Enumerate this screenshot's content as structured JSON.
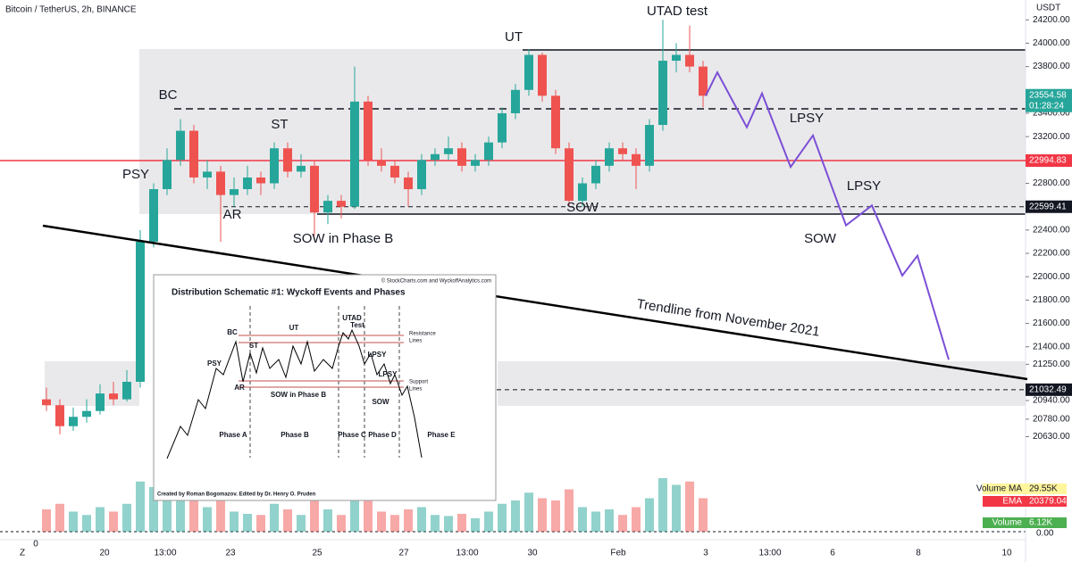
{
  "header": {
    "symbol": "Bitcoin / TetherUS, 2h, BINANCE",
    "currency": "USDT",
    "left_zero": "0",
    "right_zero": "0.00",
    "corner": "Z"
  },
  "chart_data": {
    "type": "candlestick",
    "up_color": "#26a69a",
    "down_color": "#ef5350",
    "candles": [
      [
        20950,
        21050,
        20850,
        20900
      ],
      [
        20900,
        20950,
        20650,
        20720
      ],
      [
        20720,
        20880,
        20680,
        20800
      ],
      [
        20800,
        20950,
        20750,
        20850
      ],
      [
        20850,
        21080,
        20820,
        21000
      ],
      [
        21000,
        21100,
        20900,
        20950
      ],
      [
        20950,
        21200,
        20930,
        21100
      ],
      [
        21100,
        22400,
        21050,
        22300
      ],
      [
        22300,
        22800,
        22250,
        22750
      ],
      [
        22750,
        23100,
        22700,
        23000
      ],
      [
        23000,
        23350,
        22950,
        23250
      ],
      [
        23250,
        23300,
        22800,
        22850
      ],
      [
        22850,
        23000,
        22750,
        22900
      ],
      [
        22900,
        22950,
        22300,
        22700
      ],
      [
        22700,
        22850,
        22600,
        22750
      ],
      [
        22750,
        22950,
        22700,
        22850
      ],
      [
        22850,
        22900,
        22700,
        22800
      ],
      [
        22800,
        23150,
        22750,
        23100
      ],
      [
        23100,
        23150,
        22850,
        22900
      ],
      [
        22900,
        23050,
        22850,
        22950
      ],
      [
        22950,
        23000,
        22350,
        22550
      ],
      [
        22550,
        22700,
        22450,
        22650
      ],
      [
        22650,
        22700,
        22500,
        22600
      ],
      [
        22600,
        23800,
        22580,
        23500
      ],
      [
        23500,
        23550,
        22950,
        23000
      ],
      [
        23000,
        23100,
        22900,
        22950
      ],
      [
        22950,
        23000,
        22800,
        22850
      ],
      [
        22850,
        22900,
        22600,
        22750
      ],
      [
        22750,
        23050,
        22700,
        23000
      ],
      [
        23000,
        23100,
        22950,
        23050
      ],
      [
        23050,
        23200,
        23000,
        23100
      ],
      [
        23100,
        23150,
        22900,
        22950
      ],
      [
        22950,
        23050,
        22900,
        23000
      ],
      [
        23000,
        23200,
        22950,
        23150
      ],
      [
        23150,
        23450,
        23100,
        23400
      ],
      [
        23400,
        23650,
        23350,
        23600
      ],
      [
        23600,
        23950,
        23550,
        23900
      ],
      [
        23900,
        23920,
        23500,
        23550
      ],
      [
        23550,
        23600,
        23050,
        23100
      ],
      [
        23100,
        23150,
        22600,
        22650
      ],
      [
        22650,
        22850,
        22600,
        22800
      ],
      [
        22800,
        23000,
        22750,
        22950
      ],
      [
        22950,
        23150,
        22900,
        23100
      ],
      [
        23100,
        23150,
        23000,
        23050
      ],
      [
        23050,
        23100,
        22750,
        22950
      ],
      [
        22950,
        23350,
        22900,
        23300
      ],
      [
        23300,
        24200,
        23250,
        23850
      ],
      [
        23850,
        24000,
        23750,
        23900
      ],
      [
        23900,
        24150,
        23750,
        23800
      ],
      [
        23800,
        23850,
        23450,
        23550
      ]
    ],
    "volume": [
      20,
      25,
      18,
      15,
      22,
      18,
      25,
      45,
      40,
      35,
      38,
      30,
      22,
      28,
      18,
      16,
      15,
      25,
      20,
      15,
      35,
      20,
      15,
      40,
      30,
      18,
      15,
      20,
      22,
      15,
      14,
      16,
      12,
      18,
      25,
      28,
      35,
      30,
      28,
      38,
      22,
      18,
      20,
      15,
      22,
      30,
      48,
      42,
      45,
      30
    ],
    "ylim": [
      20550,
      24370
    ],
    "yticks": [
      {
        "value": 24200,
        "label": "24200.00"
      },
      {
        "value": 24000,
        "label": "24000.00"
      },
      {
        "value": 23800,
        "label": "23800.00"
      },
      {
        "value": 23400,
        "label": "23400.00"
      },
      {
        "value": 23200,
        "label": "23200.00"
      },
      {
        "value": 22800,
        "label": "22800.00"
      },
      {
        "value": 22400,
        "label": "22400.00"
      },
      {
        "value": 22200,
        "label": "22200.00"
      },
      {
        "value": 22000,
        "label": "22000.00"
      },
      {
        "value": 21800,
        "label": "21800.00"
      },
      {
        "value": 21600,
        "label": "21600.00"
      },
      {
        "value": 21400,
        "label": "21400.00"
      },
      {
        "value": 21250,
        "label": "21250.00"
      },
      {
        "value": 20940,
        "label": "20940.00"
      },
      {
        "value": 20780,
        "label": "20780.00"
      },
      {
        "value": 20630,
        "label": "20630.00"
      }
    ],
    "xticks": [
      "20",
      "13:00",
      "23",
      "25",
      "27",
      "13:00",
      "30",
      "Feb",
      "3",
      "13:00",
      "6",
      "8",
      "10"
    ],
    "last_price": 23554.58,
    "countdown": "01:28:24",
    "levels": [
      {
        "value": 22994.83,
        "color": "#f23645"
      },
      {
        "value": 22599.41,
        "color": "#131722"
      },
      {
        "value": 21032.49,
        "color": "#131722"
      }
    ],
    "projection": {
      "color": "#7b4fd6",
      "values": [
        23550,
        23750,
        23280,
        23570,
        22940,
        23210,
        22440,
        22610,
        22010,
        22180,
        21290
      ]
    },
    "annotations": [
      "PSY",
      "BC",
      "AR",
      "ST",
      "SOW in Phase B",
      "UT",
      "UTAD test",
      "SOW",
      "LPSY",
      "LPSY",
      "SOW"
    ],
    "trendline_label": "Trendline from November 2021",
    "volume_legend": [
      {
        "name": "Volume MA",
        "value": "29.55K"
      },
      {
        "name": "EMA",
        "value": "20379.04"
      },
      {
        "name": "Volume",
        "value": "6.12K"
      }
    ]
  },
  "inset": {
    "credit": "© StockCharts.com and WyckoffAnalytics.com",
    "title": "Distribution Schematic #1: Wyckoff Events and Phases",
    "labels": [
      "BC",
      "PSY",
      "ST",
      "AR",
      "UT",
      "UTAD",
      "Test",
      "SOW in Phase B",
      "LPSY",
      "LPSY",
      "SOW",
      "Resistance",
      "Lines",
      "Support",
      "Lines"
    ],
    "phases": [
      "Phase A",
      "Phase B",
      "Phase C",
      "Phase D",
      "Phase E"
    ],
    "footer": "Created by Roman Bogomazov. Edited by Dr. Henry O. Pruden"
  }
}
